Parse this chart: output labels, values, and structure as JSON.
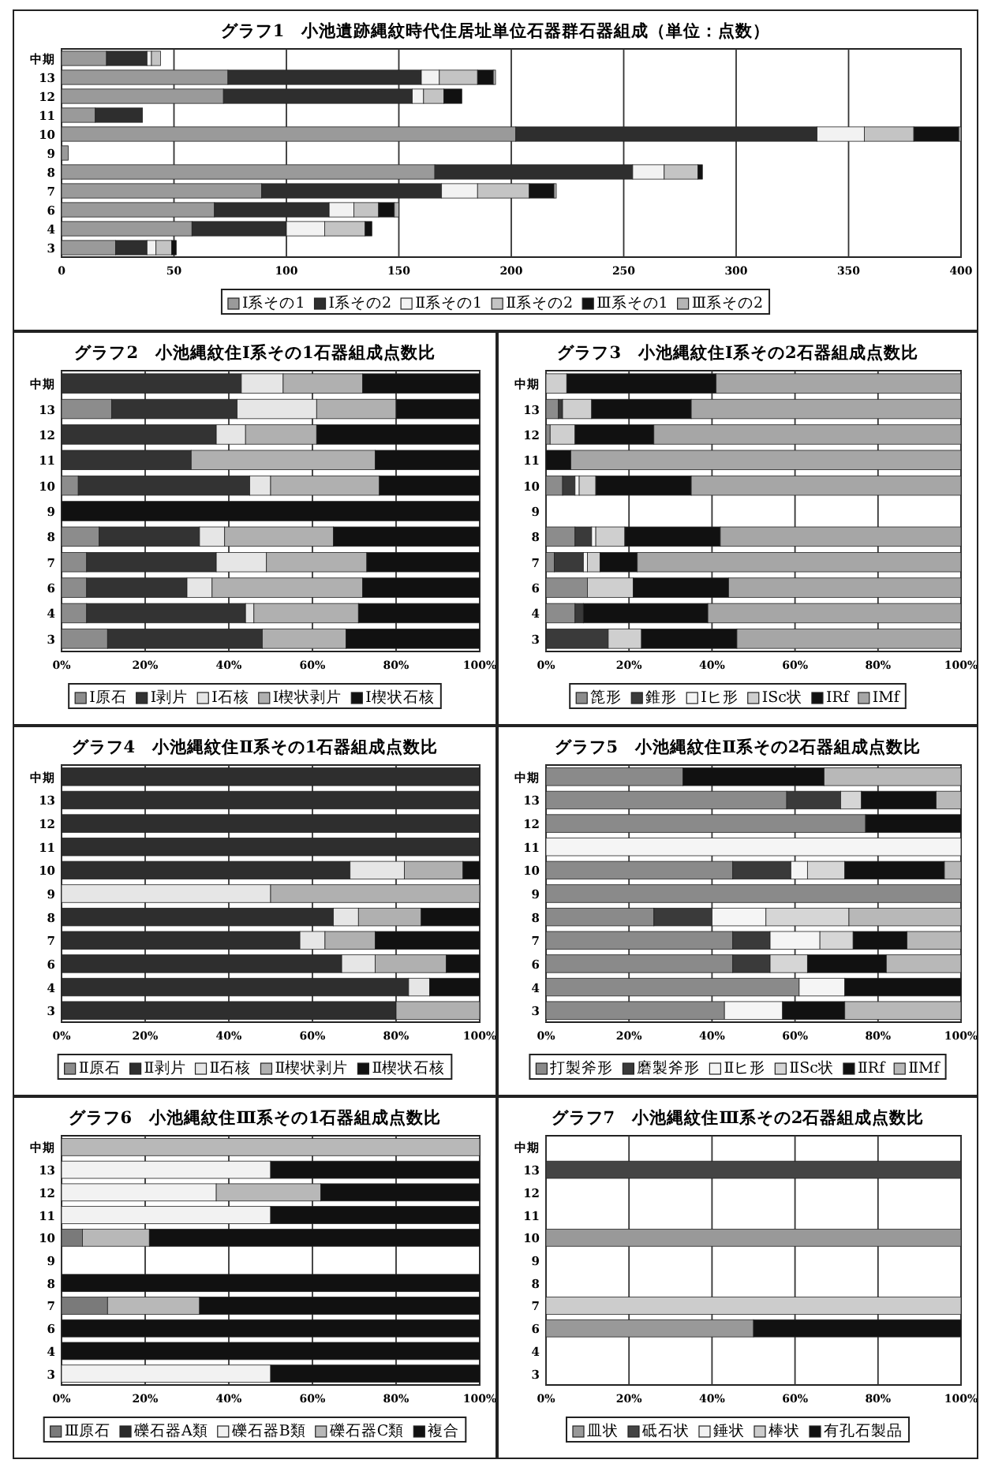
{
  "chart_data": [
    {
      "type": "bar",
      "orientation": "horizontal",
      "stacked": true,
      "grid": "x",
      "legend": "bottom",
      "title": "グラフ1　小池遺跡縄紋時代住居址単位石器群石器組成（単位：点数）",
      "categories": [
        "中期",
        "13",
        "12",
        "11",
        "10",
        "9",
        "8",
        "7",
        "6",
        "4",
        "3"
      ],
      "xlim": [
        0,
        400
      ],
      "xticks": [
        0,
        50,
        100,
        150,
        200,
        250,
        300,
        350,
        400
      ],
      "series": [
        {
          "name": "Ⅰ系その1",
          "color": "#9a9a9a",
          "values": [
            20,
            74,
            72,
            15,
            202,
            3,
            166,
            89,
            68,
            58,
            24
          ]
        },
        {
          "name": "Ⅰ系その2",
          "color": "#2e2e2e",
          "values": [
            18,
            86,
            84,
            21,
            134,
            null,
            88,
            80,
            51,
            42,
            14
          ]
        },
        {
          "name": "Ⅱ系その1",
          "color": "#f2f2f2",
          "values": [
            2,
            8,
            5,
            null,
            21,
            null,
            14,
            16,
            11,
            17,
            4
          ]
        },
        {
          "name": "Ⅱ系その2",
          "color": "#c4c4c4",
          "values": [
            4,
            17,
            9,
            null,
            22,
            null,
            15,
            23,
            11,
            18,
            7
          ]
        },
        {
          "name": "Ⅲ系その1",
          "color": "#111111",
          "values": [
            null,
            7,
            8,
            null,
            20,
            null,
            2,
            11,
            7,
            3,
            2
          ]
        },
        {
          "name": "Ⅲ系その2",
          "color": "#b5b5b5",
          "values": [
            null,
            1,
            null,
            null,
            1,
            null,
            null,
            1,
            2,
            null,
            null
          ]
        }
      ]
    },
    {
      "type": "bar",
      "orientation": "horizontal",
      "stacked": true,
      "grid": "x",
      "legend": "bottom",
      "title": "グラフ2　小池縄紋住Ⅰ系その1石器組成点数比",
      "categories": [
        "中期",
        "13",
        "12",
        "11",
        "10",
        "9",
        "8",
        "7",
        "6",
        "4",
        "3"
      ],
      "xlim": [
        0,
        100
      ],
      "xticks": [
        {
          "value": 0,
          "label": "0%"
        },
        {
          "value": 20,
          "label": "20%"
        },
        {
          "value": 40,
          "label": "40%"
        },
        {
          "value": 60,
          "label": "60%"
        },
        {
          "value": 80,
          "label": "80%"
        },
        {
          "value": 100,
          "label": "100%"
        }
      ],
      "series": [
        {
          "name": "Ⅰ原石",
          "color": "#8c8c8c",
          "values": [
            null,
            12,
            null,
            null,
            4,
            null,
            9,
            6,
            6,
            6,
            11
          ]
        },
        {
          "name": "Ⅰ剥片",
          "color": "#333333",
          "values": [
            43,
            30,
            37,
            31,
            41,
            null,
            24,
            31,
            24,
            38,
            37
          ]
        },
        {
          "name": "Ⅰ石核",
          "color": "#e6e6e6",
          "values": [
            10,
            19,
            7,
            null,
            5,
            null,
            6,
            12,
            6,
            2,
            null
          ]
        },
        {
          "name": "Ⅰ楔状剥片",
          "color": "#b0b0b0",
          "values": [
            19,
            19,
            17,
            44,
            26,
            null,
            26,
            24,
            36,
            25,
            20
          ]
        },
        {
          "name": "Ⅰ楔状石核",
          "color": "#111111",
          "values": [
            28,
            20,
            39,
            25,
            24,
            100,
            35,
            27,
            28,
            29,
            32
          ]
        }
      ]
    },
    {
      "type": "bar",
      "orientation": "horizontal",
      "stacked": true,
      "grid": "x",
      "legend": "bottom",
      "title": "グラフ3　小池縄紋住Ⅰ系その2石器組成点数比",
      "categories": [
        "中期",
        "13",
        "12",
        "11",
        "10",
        "9",
        "8",
        "7",
        "6",
        "4",
        "3"
      ],
      "xlim": [
        0,
        100
      ],
      "xticks": [
        {
          "value": 0,
          "label": "0%"
        },
        {
          "value": 20,
          "label": "20%"
        },
        {
          "value": 40,
          "label": "40%"
        },
        {
          "value": 60,
          "label": "60%"
        },
        {
          "value": 80,
          "label": "80%"
        },
        {
          "value": 100,
          "label": "100%"
        }
      ],
      "series": [
        {
          "name": "箆形",
          "color": "#8c8c8c",
          "values": [
            null,
            3,
            1,
            null,
            4,
            null,
            7,
            2,
            10,
            7,
            null
          ]
        },
        {
          "name": "錐形",
          "color": "#3a3a3a",
          "values": [
            null,
            1,
            null,
            null,
            3,
            null,
            4,
            7,
            null,
            2,
            15
          ]
        },
        {
          "name": "Ⅰヒ形",
          "color": "#f5f5f5",
          "values": [
            null,
            null,
            null,
            null,
            1,
            null,
            1,
            1,
            null,
            null,
            null
          ]
        },
        {
          "name": "ⅠSc状",
          "color": "#cfcfcf",
          "values": [
            5,
            7,
            6,
            null,
            4,
            null,
            7,
            3,
            11,
            null,
            8
          ]
        },
        {
          "name": "ⅠRf",
          "color": "#111111",
          "values": [
            36,
            24,
            19,
            6,
            23,
            null,
            23,
            9,
            23,
            30,
            23
          ]
        },
        {
          "name": "ⅠMf",
          "color": "#a6a6a6",
          "values": [
            59,
            65,
            74,
            94,
            65,
            null,
            58,
            78,
            56,
            61,
            54
          ]
        }
      ]
    },
    {
      "type": "bar",
      "orientation": "horizontal",
      "stacked": true,
      "grid": "x",
      "legend": "bottom",
      "title": "グラフ4　小池縄紋住Ⅱ系その1石器組成点数比",
      "categories": [
        "中期",
        "13",
        "12",
        "11",
        "10",
        "9",
        "8",
        "7",
        "6",
        "4",
        "3"
      ],
      "xlim": [
        0,
        100
      ],
      "xticks": [
        {
          "value": 0,
          "label": "0%"
        },
        {
          "value": 20,
          "label": "20%"
        },
        {
          "value": 40,
          "label": "40%"
        },
        {
          "value": 60,
          "label": "60%"
        },
        {
          "value": 80,
          "label": "80%"
        },
        {
          "value": 100,
          "label": "100%"
        }
      ],
      "series": [
        {
          "name": "Ⅱ原石",
          "color": "#8c8c8c",
          "values": [
            null,
            null,
            null,
            null,
            null,
            null,
            null,
            null,
            null,
            null,
            null
          ]
        },
        {
          "name": "Ⅱ剥片",
          "color": "#2e2e2e",
          "values": [
            100,
            100,
            100,
            100,
            69,
            null,
            65,
            57,
            67,
            83,
            80
          ]
        },
        {
          "name": "Ⅱ石核",
          "color": "#e6e6e6",
          "values": [
            null,
            null,
            null,
            null,
            13,
            50,
            6,
            6,
            8,
            5,
            null
          ]
        },
        {
          "name": "Ⅱ楔状剥片",
          "color": "#b0b0b0",
          "values": [
            null,
            null,
            null,
            null,
            14,
            50,
            15,
            12,
            17,
            null,
            20
          ]
        },
        {
          "name": "Ⅱ楔状石核",
          "color": "#111111",
          "values": [
            null,
            null,
            null,
            null,
            4,
            null,
            14,
            25,
            8,
            12,
            null
          ]
        }
      ]
    },
    {
      "type": "bar",
      "orientation": "horizontal",
      "stacked": true,
      "grid": "x",
      "legend": "bottom",
      "title": "グラフ5　小池縄紋住Ⅱ系その2石器組成点数比",
      "categories": [
        "中期",
        "13",
        "12",
        "11",
        "10",
        "9",
        "8",
        "7",
        "6",
        "4",
        "3"
      ],
      "xlim": [
        0,
        100
      ],
      "xticks": [
        {
          "value": 0,
          "label": "0%"
        },
        {
          "value": 20,
          "label": "20%"
        },
        {
          "value": 40,
          "label": "40%"
        },
        {
          "value": 60,
          "label": "60%"
        },
        {
          "value": 80,
          "label": "80%"
        },
        {
          "value": 100,
          "label": "100%"
        }
      ],
      "series": [
        {
          "name": "打製斧形",
          "color": "#8a8a8a",
          "values": [
            33,
            58,
            77,
            null,
            45,
            100,
            26,
            45,
            45,
            61,
            43
          ]
        },
        {
          "name": "磨製斧形",
          "color": "#3a3a3a",
          "values": [
            null,
            13,
            null,
            null,
            14,
            null,
            14,
            9,
            9,
            null,
            null
          ]
        },
        {
          "name": "Ⅱヒ形",
          "color": "#f5f5f5",
          "values": [
            null,
            null,
            null,
            100,
            4,
            null,
            13,
            12,
            null,
            11,
            14
          ]
        },
        {
          "name": "ⅡSc状",
          "color": "#d6d6d6",
          "values": [
            null,
            5,
            null,
            null,
            9,
            null,
            20,
            8,
            9,
            null,
            null
          ]
        },
        {
          "name": "ⅡRf",
          "color": "#111111",
          "values": [
            34,
            18,
            23,
            null,
            24,
            null,
            null,
            13,
            19,
            28,
            15
          ]
        },
        {
          "name": "ⅡMf",
          "color": "#b8b8b8",
          "values": [
            33,
            6,
            null,
            null,
            4,
            null,
            27,
            13,
            18,
            null,
            28
          ]
        }
      ]
    },
    {
      "type": "bar",
      "orientation": "horizontal",
      "stacked": true,
      "grid": "x",
      "legend": "bottom",
      "title": "グラフ6　小池縄紋住Ⅲ系その1石器組成点数比",
      "categories": [
        "中期",
        "13",
        "12",
        "11",
        "10",
        "9",
        "8",
        "7",
        "6",
        "4",
        "3"
      ],
      "xlim": [
        0,
        100
      ],
      "xticks": [
        {
          "value": 0,
          "label": "0%"
        },
        {
          "value": 20,
          "label": "20%"
        },
        {
          "value": 40,
          "label": "40%"
        },
        {
          "value": 60,
          "label": "60%"
        },
        {
          "value": 80,
          "label": "80%"
        },
        {
          "value": 100,
          "label": "100%"
        }
      ],
      "series": [
        {
          "name": "Ⅲ原石",
          "color": "#7a7a7a",
          "values": [
            null,
            null,
            null,
            null,
            5,
            null,
            null,
            11,
            null,
            null,
            null
          ]
        },
        {
          "name": "礫石器A類",
          "color": "#2a2a2a",
          "values": [
            null,
            null,
            null,
            null,
            null,
            null,
            null,
            null,
            null,
            null,
            null
          ]
        },
        {
          "name": "礫石器B類",
          "color": "#f2f2f2",
          "values": [
            null,
            50,
            37,
            50,
            null,
            null,
            null,
            null,
            null,
            null,
            50
          ]
        },
        {
          "name": "礫石器C類",
          "color": "#b8b8b8",
          "values": [
            100,
            null,
            25,
            null,
            16,
            null,
            null,
            22,
            null,
            null,
            null
          ]
        },
        {
          "name": "複合",
          "color": "#111111",
          "values": [
            null,
            50,
            38,
            50,
            79,
            null,
            100,
            67,
            100,
            100,
            50
          ]
        }
      ]
    },
    {
      "type": "bar",
      "orientation": "horizontal",
      "stacked": true,
      "grid": "x",
      "legend": "bottom",
      "title": "グラフ7　小池縄紋住Ⅲ系その2石器組成点数比",
      "categories": [
        "中期",
        "13",
        "12",
        "11",
        "10",
        "9",
        "8",
        "7",
        "6",
        "4",
        "3"
      ],
      "xlim": [
        0,
        100
      ],
      "xticks": [
        {
          "value": 0,
          "label": "0%"
        },
        {
          "value": 20,
          "label": "20%"
        },
        {
          "value": 40,
          "label": "40%"
        },
        {
          "value": 60,
          "label": "60%"
        },
        {
          "value": 80,
          "label": "80%"
        },
        {
          "value": 100,
          "label": "100%"
        }
      ],
      "series": [
        {
          "name": "皿状",
          "color": "#999999",
          "values": [
            null,
            null,
            null,
            null,
            100,
            null,
            null,
            null,
            50,
            null,
            null
          ]
        },
        {
          "name": "砥石状",
          "color": "#444444",
          "values": [
            null,
            100,
            null,
            null,
            null,
            null,
            null,
            null,
            null,
            null,
            null
          ]
        },
        {
          "name": "錘状",
          "color": "#f2f2f2",
          "values": [
            null,
            null,
            null,
            null,
            null,
            null,
            null,
            null,
            null,
            null,
            null
          ]
        },
        {
          "name": "棒状",
          "color": "#cccccc",
          "values": [
            null,
            null,
            null,
            null,
            null,
            null,
            null,
            100,
            null,
            null,
            null
          ]
        },
        {
          "name": "有孔石製品",
          "color": "#111111",
          "values": [
            null,
            null,
            null,
            null,
            null,
            null,
            null,
            null,
            50,
            null,
            null
          ]
        }
      ]
    }
  ]
}
